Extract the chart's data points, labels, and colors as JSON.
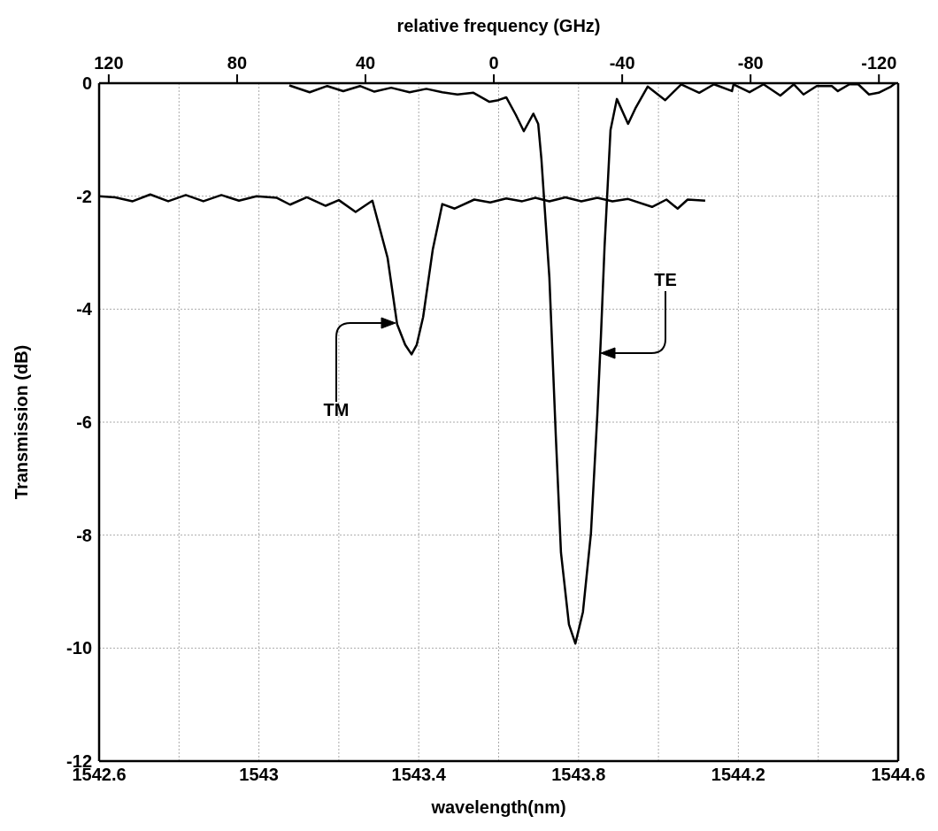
{
  "chart_data": {
    "type": "line",
    "x2label": "relative frequency (GHz)",
    "xlabel": "wavelength(nm)",
    "ylabel": "Transmission (dB)",
    "xlim": [
      1542.6,
      1544.6
    ],
    "xticks": [
      1542.6,
      {
        "value": 1542.8,
        "label": null
      },
      1543,
      {
        "value": 1543.2,
        "label": null
      },
      1543.4,
      {
        "value": 1543.6,
        "label": null
      },
      1543.8,
      {
        "value": 1544.0,
        "label": null
      },
      1544.2,
      {
        "value": 1544.4,
        "label": null
      },
      1544.6
    ],
    "x2lim": [
      123,
      -126
    ],
    "x2ticks": [
      120,
      80,
      40,
      0,
      -40,
      -80,
      -120
    ],
    "ylim": [
      -12,
      0
    ],
    "yticks": [
      0,
      -2,
      -4,
      -6,
      -8,
      -10,
      -12
    ],
    "grid": true,
    "marker": "none",
    "line_style": "solid",
    "series": [
      {
        "color": "#000000",
        "x": [
          1543.076,
          1543.127,
          1543.171,
          1543.211,
          1543.253,
          1543.289,
          1543.331,
          1543.377,
          1543.419,
          1543.459,
          1543.497,
          1543.537,
          1543.577,
          1543.599,
          1543.619,
          1543.643,
          1543.663,
          1543.687,
          1543.699,
          1543.707,
          1543.727,
          1543.743,
          1543.756,
          1543.776,
          1543.792,
          1543.811,
          1543.831,
          1543.847,
          1543.856,
          1543.865,
          1543.88,
          1543.896,
          1543.924,
          1543.942,
          1543.973,
          1544.017,
          1544.057,
          1544.102,
          1544.139,
          1544.184,
          1544.188,
          1544.228,
          1544.263,
          1544.305,
          1544.339,
          1544.363,
          1544.396,
          1544.434,
          1544.449,
          1544.478,
          1544.5,
          1544.527,
          1544.551,
          1544.582,
          1544.593
        ],
        "values": [
          -0.04,
          -0.16,
          -0.05,
          -0.14,
          -0.05,
          -0.15,
          -0.08,
          -0.16,
          -0.1,
          -0.16,
          -0.2,
          -0.17,
          -0.33,
          -0.3,
          -0.25,
          -0.56,
          -0.85,
          -0.54,
          -0.72,
          -1.34,
          -3.44,
          -6.23,
          -8.31,
          -9.58,
          -9.92,
          -9.36,
          -7.97,
          -5.87,
          -4.48,
          -2.91,
          -0.83,
          -0.28,
          -0.72,
          -0.45,
          -0.06,
          -0.3,
          -0.02,
          -0.17,
          -0.02,
          -0.14,
          -0.02,
          -0.16,
          -0.02,
          -0.22,
          -0.02,
          -0.2,
          -0.05,
          -0.05,
          -0.14,
          -0.02,
          -0.02,
          -0.2,
          -0.17,
          -0.06,
          0
        ]
      },
      {
        "color": "#000000",
        "x": [
          1542.6,
          1542.64,
          1542.684,
          1542.728,
          1542.773,
          1542.817,
          1542.861,
          1542.906,
          1542.95,
          1542.994,
          1543.045,
          1543.078,
          1543.12,
          1543.167,
          1543.2,
          1543.242,
          1543.284,
          1543.322,
          1543.346,
          1543.366,
          1543.382,
          1543.395,
          1543.411,
          1543.435,
          1543.459,
          1543.49,
          1543.539,
          1543.579,
          1543.619,
          1543.659,
          1543.692,
          1543.727,
          1543.767,
          1543.807,
          1543.847,
          1543.885,
          1543.924,
          1543.984,
          1544.02,
          1544.048,
          1544.073,
          1544.117
        ],
        "values": [
          -2.0,
          -2.02,
          -2.09,
          -1.97,
          -2.09,
          -1.98,
          -2.09,
          -1.98,
          -2.08,
          -2.0,
          -2.03,
          -2.15,
          -2.02,
          -2.17,
          -2.07,
          -2.28,
          -2.08,
          -3.09,
          -4.27,
          -4.63,
          -4.8,
          -4.63,
          -4.14,
          -2.95,
          -2.14,
          -2.22,
          -2.06,
          -2.11,
          -2.04,
          -2.09,
          -2.03,
          -2.09,
          -2.02,
          -2.09,
          -2.03,
          -2.09,
          -2.05,
          -2.19,
          -2.06,
          -2.22,
          -2.06,
          -2.08
        ]
      }
    ],
    "annotations": [
      "TM",
      "TE"
    ]
  }
}
